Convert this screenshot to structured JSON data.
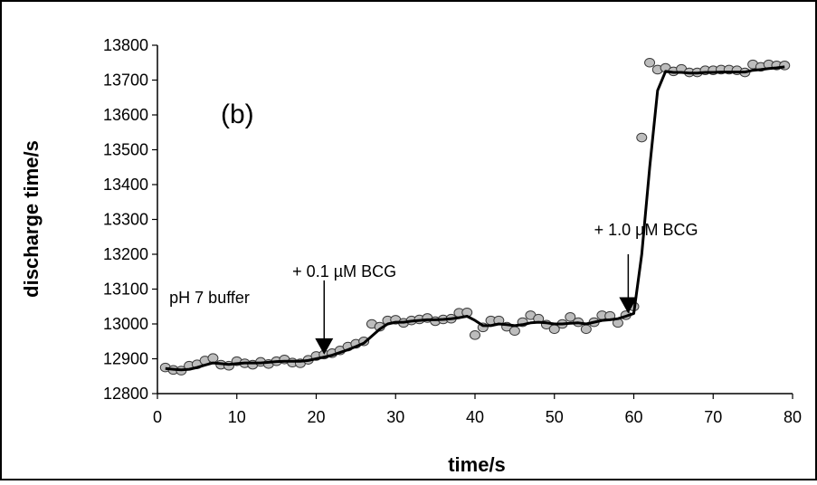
{
  "chart_data": {
    "type": "scatter",
    "panel_label": "(b)",
    "xlabel": "time/s",
    "ylabel": "discharge time/s",
    "xlim": [
      0,
      80
    ],
    "ylim": [
      12800,
      13800
    ],
    "xticks": [
      0,
      10,
      20,
      30,
      40,
      50,
      60,
      70,
      80
    ],
    "yticks": [
      12800,
      12900,
      13000,
      13100,
      13200,
      13300,
      13400,
      13500,
      13600,
      13700,
      13800
    ],
    "grid": false,
    "colors": {
      "points_fill": "#bdbdbd",
      "points_stroke": "#3a3a3a",
      "line": "#000000"
    },
    "series": [
      {
        "kind": "points",
        "x": [
          1,
          2,
          3,
          4,
          5,
          6,
          7,
          8,
          9,
          10,
          11,
          12,
          13,
          14,
          15,
          16,
          17,
          18,
          19,
          20,
          21,
          22,
          23,
          24,
          25,
          26,
          27,
          28,
          29,
          30,
          31,
          32,
          33,
          34,
          35,
          36,
          37,
          38,
          39,
          40,
          41,
          42,
          43,
          44,
          45,
          46,
          47,
          48,
          49,
          50,
          51,
          52,
          53,
          54,
          55,
          56,
          57,
          58,
          59,
          60,
          61,
          62,
          63,
          64,
          65,
          66,
          67,
          68,
          69,
          70,
          71,
          72,
          73,
          74,
          75,
          76,
          77,
          78,
          79
        ],
        "y": [
          12875,
          12868,
          12866,
          12880,
          12884,
          12895,
          12902,
          12883,
          12880,
          12893,
          12887,
          12883,
          12891,
          12885,
          12893,
          12898,
          12889,
          12887,
          12897,
          12908,
          12912,
          12916,
          12924,
          12935,
          12943,
          12950,
          13000,
          12992,
          13010,
          13012,
          13003,
          13010,
          13013,
          13017,
          13008,
          13013,
          13015,
          13032,
          13033,
          12968,
          12990,
          13010,
          13010,
          12992,
          12980,
          13005,
          13025,
          13015,
          12998,
          12985,
          13000,
          13020,
          13005,
          12985,
          13005,
          13025,
          13023,
          13003,
          13025,
          13050,
          13535,
          13750,
          13730,
          13735,
          13725,
          13732,
          13722,
          13722,
          13728,
          13728,
          13730,
          13730,
          13728,
          13722,
          13745,
          13738,
          13745,
          13742,
          13742
        ]
      },
      {
        "kind": "line",
        "x": [
          1,
          2,
          3,
          4,
          5,
          6,
          7,
          8,
          9,
          10,
          11,
          12,
          13,
          14,
          15,
          16,
          17,
          18,
          19,
          20,
          21,
          22,
          23,
          24,
          25,
          26,
          27,
          28,
          29,
          30,
          31,
          32,
          33,
          34,
          35,
          36,
          37,
          38,
          39,
          40,
          41,
          42,
          43,
          44,
          45,
          46,
          47,
          48,
          49,
          50,
          51,
          52,
          53,
          54,
          55,
          56,
          57,
          58,
          59,
          60,
          61,
          62,
          63,
          64,
          65,
          66,
          67,
          68,
          69,
          70,
          71,
          72,
          73,
          74,
          75,
          76,
          77,
          78,
          79
        ],
        "y": [
          12872,
          12870,
          12868,
          12870,
          12875,
          12882,
          12888,
          12886,
          12884,
          12886,
          12888,
          12888,
          12888,
          12890,
          12892,
          12893,
          12893,
          12893,
          12895,
          12900,
          12905,
          12910,
          12918,
          12926,
          12935,
          12945,
          12965,
          12985,
          13000,
          13005,
          13005,
          13008,
          13010,
          13012,
          13012,
          13013,
          13015,
          13018,
          13022,
          13010,
          12995,
          12995,
          13000,
          12998,
          12995,
          12998,
          13003,
          13005,
          13003,
          13000,
          13000,
          13002,
          13003,
          13000,
          13005,
          13010,
          13012,
          13015,
          13022,
          13030,
          13200,
          13450,
          13670,
          13725,
          13722,
          13722,
          13720,
          13720,
          13722,
          13722,
          13723,
          13723,
          13723,
          13723,
          13728,
          13730,
          13733,
          13735,
          13738
        ]
      }
    ],
    "annotations": [
      {
        "text": "pH 7 buffer",
        "x": 1.5,
        "y": 13060
      },
      {
        "text": "+ 0.1 µM BCG",
        "x": 17,
        "y": 13135
      },
      {
        "text": "+ 1.0 µM BCG",
        "x": 55,
        "y": 13255
      }
    ],
    "arrows": [
      {
        "x": 21,
        "y_from": 13125,
        "y_to": 12912
      },
      {
        "x": 59.3,
        "y_from": 13200,
        "y_to": 13030
      }
    ]
  }
}
